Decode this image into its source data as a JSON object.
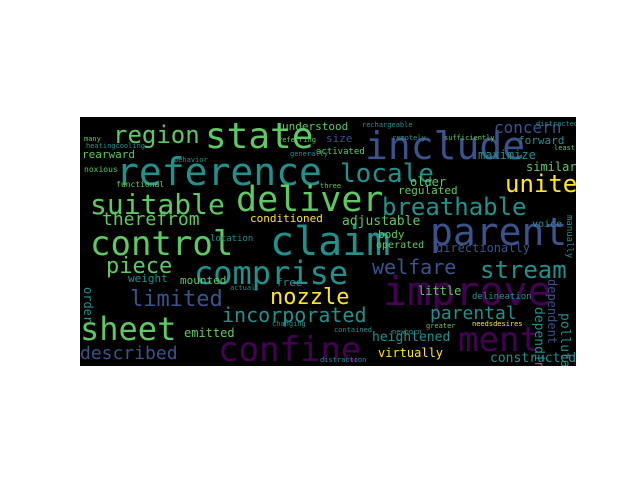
{
  "colors": {
    "background": "#000000",
    "page": "#ffffff",
    "palette": [
      "#fde725",
      "#5ec962",
      "#21918c",
      "#3b528b",
      "#440154"
    ]
  },
  "words": {
    "region": "region",
    "state": "state",
    "include": "include",
    "reference": "reference",
    "deliver": "deliver",
    "locale": "locale",
    "united": "united",
    "suitable": "suitable",
    "breathable": "breathable",
    "therefrom": "therefrom",
    "parent": "parent",
    "control": "control",
    "claim": "claim",
    "comprise": "comprise",
    "improve": "improve",
    "welfare": "welfare",
    "stream": "stream",
    "piece": "piece",
    "limited": "limited",
    "nozzle": "nozzle",
    "sheet": "sheet",
    "incorporated": "incorporated",
    "parental": "parental",
    "ment": "ment",
    "confine": "confine",
    "described": "described",
    "heightened": "heightened",
    "constructed": "constructed",
    "concern": "concern",
    "forward": "forward",
    "understood": "understood",
    "older": "older",
    "regulated": "regulated",
    "maximize": "maximize",
    "similar": "similar",
    "adjustable": "adjustable",
    "conditioned": "conditioned",
    "mounted": "mounted",
    "free": "free",
    "emitted": "emitted",
    "body": "body",
    "operated": "operated",
    "virtually": "virtually",
    "pollutant": "pollutant",
    "depending": "depending",
    "dependent": "dependent",
    "little": "little",
    "directionally": "directionally",
    "weight": "weight",
    "rearward": "rearward",
    "size": "size",
    "activated": "activated",
    "voice": "voice",
    "order": "order",
    "location": "location",
    "delineation": "delineation",
    "functional": "functional",
    "noxious": "noxious",
    "heatingcooling": "heatingcooling",
    "rechargeable": "rechargeable",
    "remotely": "remotely",
    "sufficiently": "sufficiently",
    "distracted": "distracted",
    "referring": "referring",
    "many": "many",
    "needsdesires": "needsdesires",
    "newborn": "newborn",
    "greater": "greater",
    "contained": "contained",
    "distraction": "distraction",
    "changing": "changing",
    "actual": "actual",
    "behavior": "behavior",
    "manually": "manually",
    "generally": "generally",
    "three": "three",
    "least": "least"
  }
}
